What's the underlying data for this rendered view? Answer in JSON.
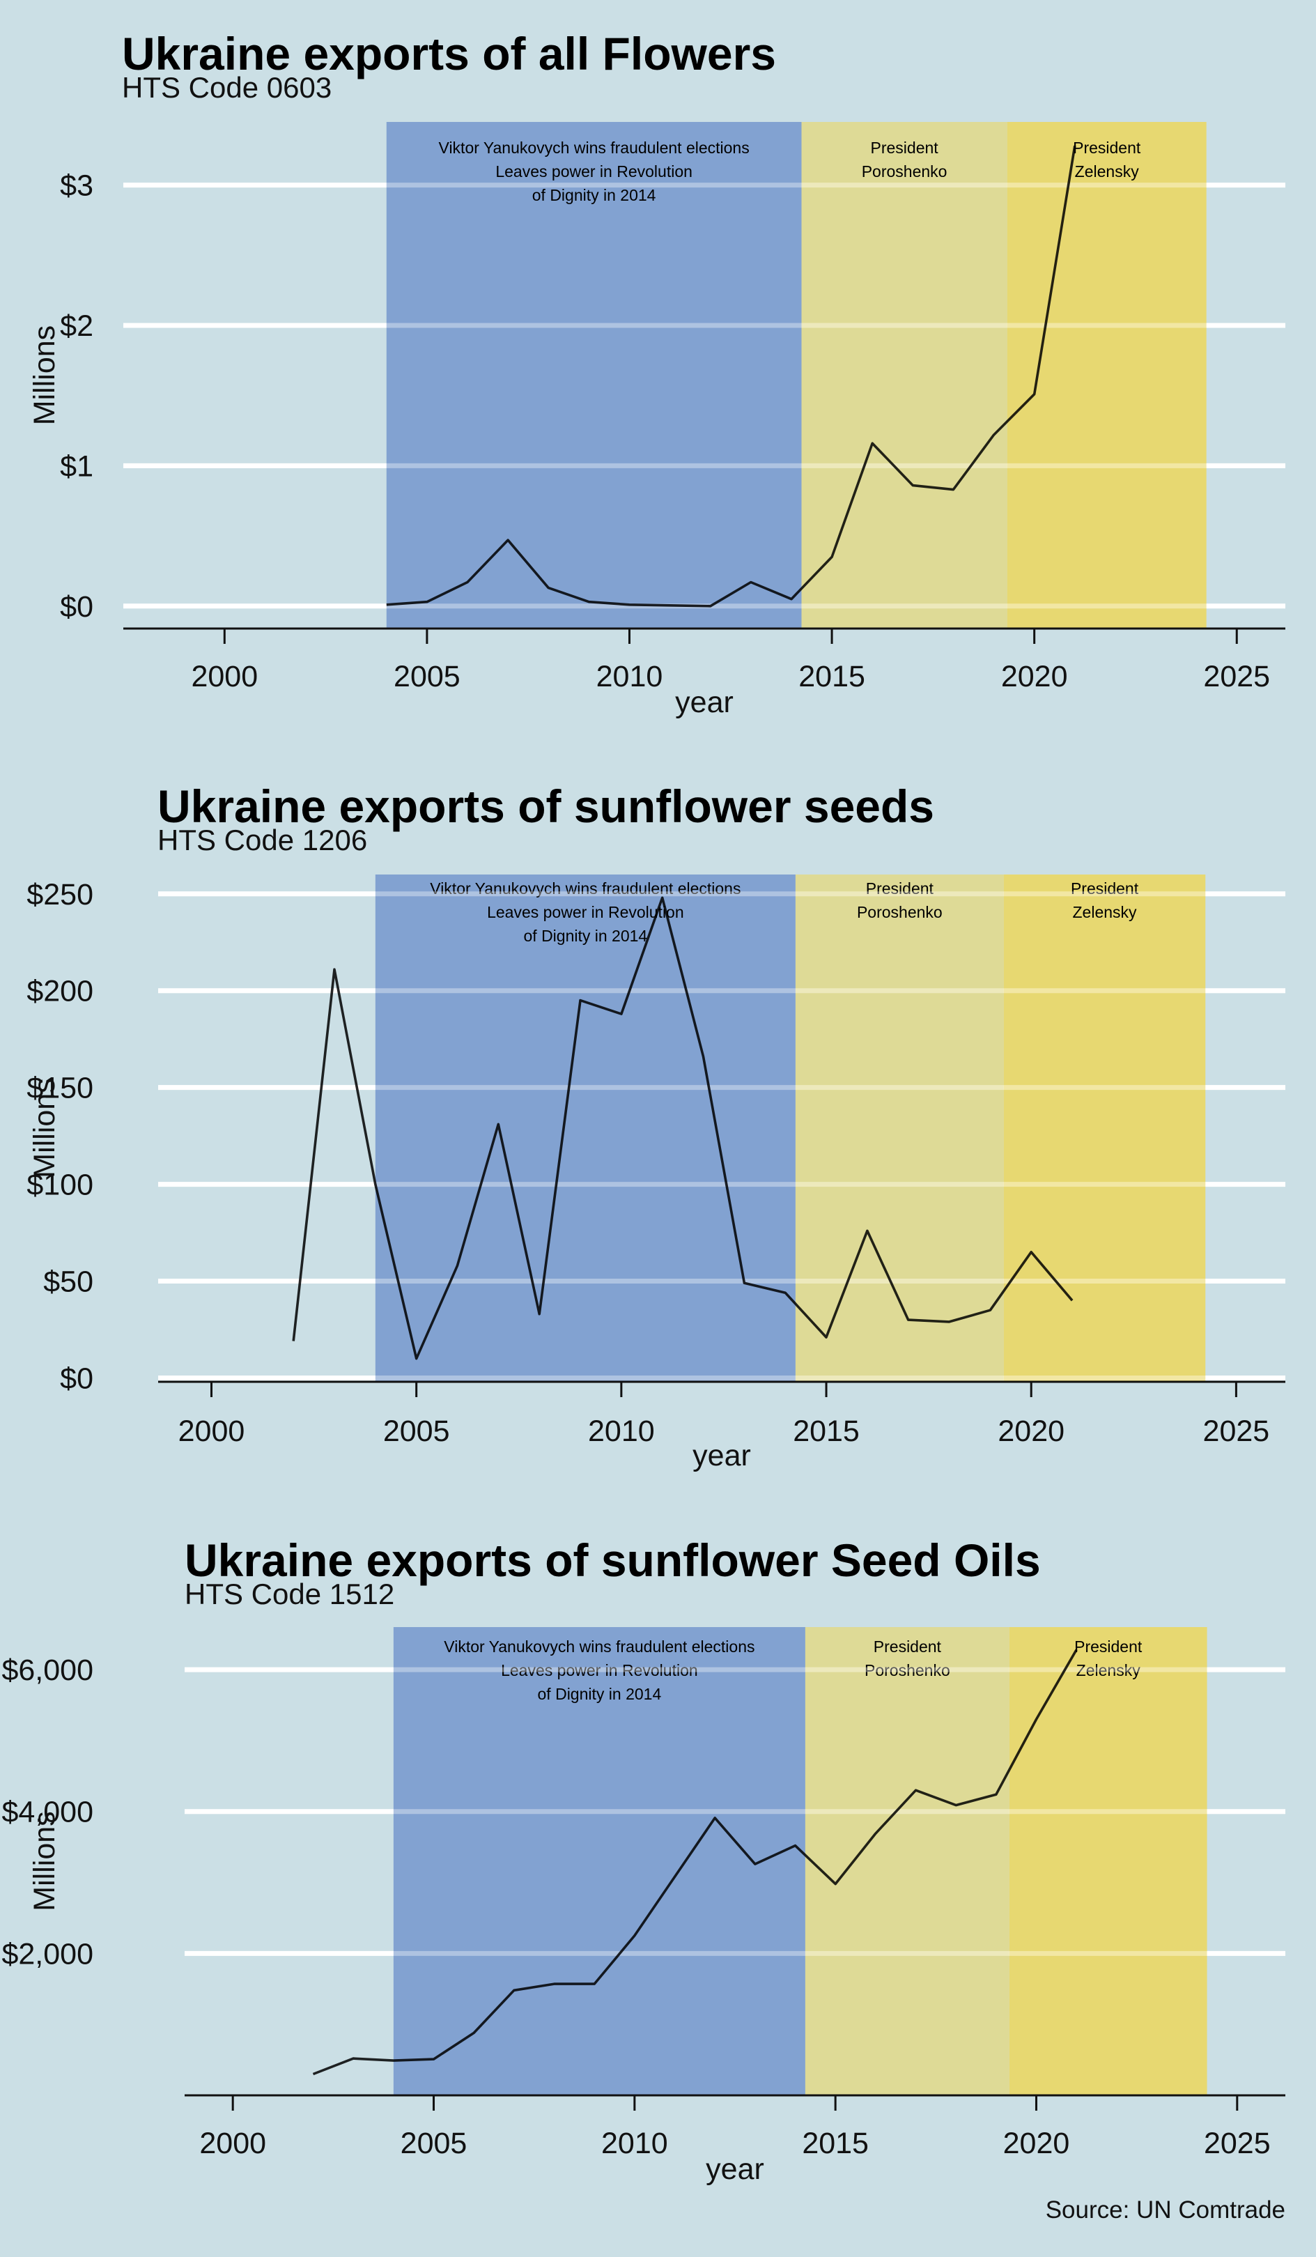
{
  "colors": {
    "background": "#cbdfe5",
    "band_yanukovych": "#7fa0cf",
    "band_poroshenko": "#e0d98d",
    "band_zelensky": "#ead764",
    "gridline": "#ffffff",
    "line": "#000000"
  },
  "source": "Source: UN Comtrade",
  "chart_data": [
    {
      "type": "line",
      "title": "Ukraine exports of all Flowers",
      "subtitle": "HTS Code 0603",
      "xlabel": "year",
      "ylabel": "Millions",
      "xlim": [
        1997.5,
        2026.2
      ],
      "ylim": [
        -0.16,
        3.45
      ],
      "x_ticks": [
        2000,
        2005,
        2010,
        2015,
        2020,
        2025
      ],
      "y_ticks": [
        0,
        1,
        2,
        3
      ],
      "y_tick_labels": [
        "$0",
        "$1",
        "$2",
        "$3"
      ],
      "grid_y": true,
      "periods": [
        {
          "start": 2004,
          "end": 2014.25,
          "lines": [
            "Viktor Yanukovych wins fraudulent elections",
            "Leaves power in Revolution",
            "of Dignity in 2014"
          ],
          "color_key": "band_yanukovych"
        },
        {
          "start": 2014.25,
          "end": 2019.33,
          "lines": [
            "President",
            "Poroshenko"
          ],
          "color_key": "band_poroshenko"
        },
        {
          "start": 2019.33,
          "end": 2024.25,
          "lines": [
            "President",
            "Zelensky"
          ],
          "color_key": "band_zelensky"
        }
      ],
      "x": [
        2004,
        2005,
        2006,
        2007,
        2008,
        2009,
        2010,
        2011,
        2012,
        2013,
        2014,
        2015,
        2016,
        2017,
        2018,
        2019,
        2020,
        2021
      ],
      "values": [
        0.01,
        0.03,
        0.17,
        0.47,
        0.13,
        0.03,
        0.01,
        0.005,
        0.0,
        0.17,
        0.05,
        0.35,
        1.16,
        0.86,
        0.83,
        1.22,
        1.51,
        3.28
      ]
    },
    {
      "type": "line",
      "title": "Ukraine exports of sunflower seeds",
      "subtitle": "HTS Code 1206",
      "xlabel": "year",
      "ylabel": "Millions",
      "xlim": [
        1998.7,
        2026.2
      ],
      "ylim": [
        -2,
        260
      ],
      "x_ticks": [
        2000,
        2005,
        2010,
        2015,
        2020,
        2025
      ],
      "y_ticks": [
        0,
        50,
        100,
        150,
        200,
        250
      ],
      "y_tick_labels": [
        "$0",
        "$50",
        "$100",
        "$150",
        "$200",
        "$250"
      ],
      "grid_y": true,
      "periods": [
        {
          "start": 2004,
          "end": 2014.25,
          "lines": [
            "Viktor Yanukovych wins fraudulent elections",
            "Leaves power in Revolution",
            "of Dignity in 2014"
          ],
          "color_key": "band_yanukovych"
        },
        {
          "start": 2014.25,
          "end": 2019.33,
          "lines": [
            "President",
            "Poroshenko"
          ],
          "color_key": "band_poroshenko"
        },
        {
          "start": 2019.33,
          "end": 2024.25,
          "lines": [
            "President",
            "Zelensky"
          ],
          "color_key": "band_zelensky"
        }
      ],
      "x": [
        2002,
        2003,
        2004,
        2005,
        2006,
        2007,
        2008,
        2009,
        2010,
        2011,
        2012,
        2013,
        2014,
        2015,
        2016,
        2017,
        2018,
        2019,
        2020,
        2021
      ],
      "values": [
        19,
        211,
        100,
        10,
        58,
        131,
        33,
        195,
        188,
        248,
        166,
        49,
        44,
        21,
        76,
        30,
        29,
        35,
        65,
        40
      ]
    },
    {
      "type": "line",
      "title": "Ukraine exports of sunflower Seed Oils",
      "subtitle": "HTS Code 1512",
      "xlabel": "year",
      "ylabel": "Millions",
      "xlim": [
        1998.8,
        2026.2
      ],
      "ylim": [
        0,
        6600
      ],
      "x_ticks": [
        2000,
        2005,
        2010,
        2015,
        2020,
        2025
      ],
      "y_ticks": [
        2000,
        4000,
        6000
      ],
      "y_tick_labels": [
        "$2,000",
        "$4,000",
        "$6,000"
      ],
      "grid_y": true,
      "periods": [
        {
          "start": 2004,
          "end": 2014.25,
          "lines": [
            "Viktor Yanukovych wins fraudulent elections",
            "Leaves power in Revolution",
            "of Dignity in 2014"
          ],
          "color_key": "band_yanukovych"
        },
        {
          "start": 2014.25,
          "end": 2019.33,
          "lines": [
            "President",
            "Poroshenko"
          ],
          "color_key": "band_poroshenko"
        },
        {
          "start": 2019.33,
          "end": 2024.25,
          "lines": [
            "President",
            "Zelensky"
          ],
          "color_key": "band_zelensky"
        }
      ],
      "x": [
        2002,
        2003,
        2004,
        2005,
        2006,
        2007,
        2008,
        2009,
        2010,
        2011,
        2012,
        2013,
        2014,
        2015,
        2016,
        2017,
        2018,
        2019,
        2020,
        2021
      ],
      "values": [
        300,
        520,
        490,
        510,
        880,
        1480,
        1570,
        1570,
        2250,
        3080,
        3910,
        3260,
        3520,
        2980,
        3690,
        4300,
        4090,
        4240,
        5300,
        6280
      ]
    }
  ]
}
